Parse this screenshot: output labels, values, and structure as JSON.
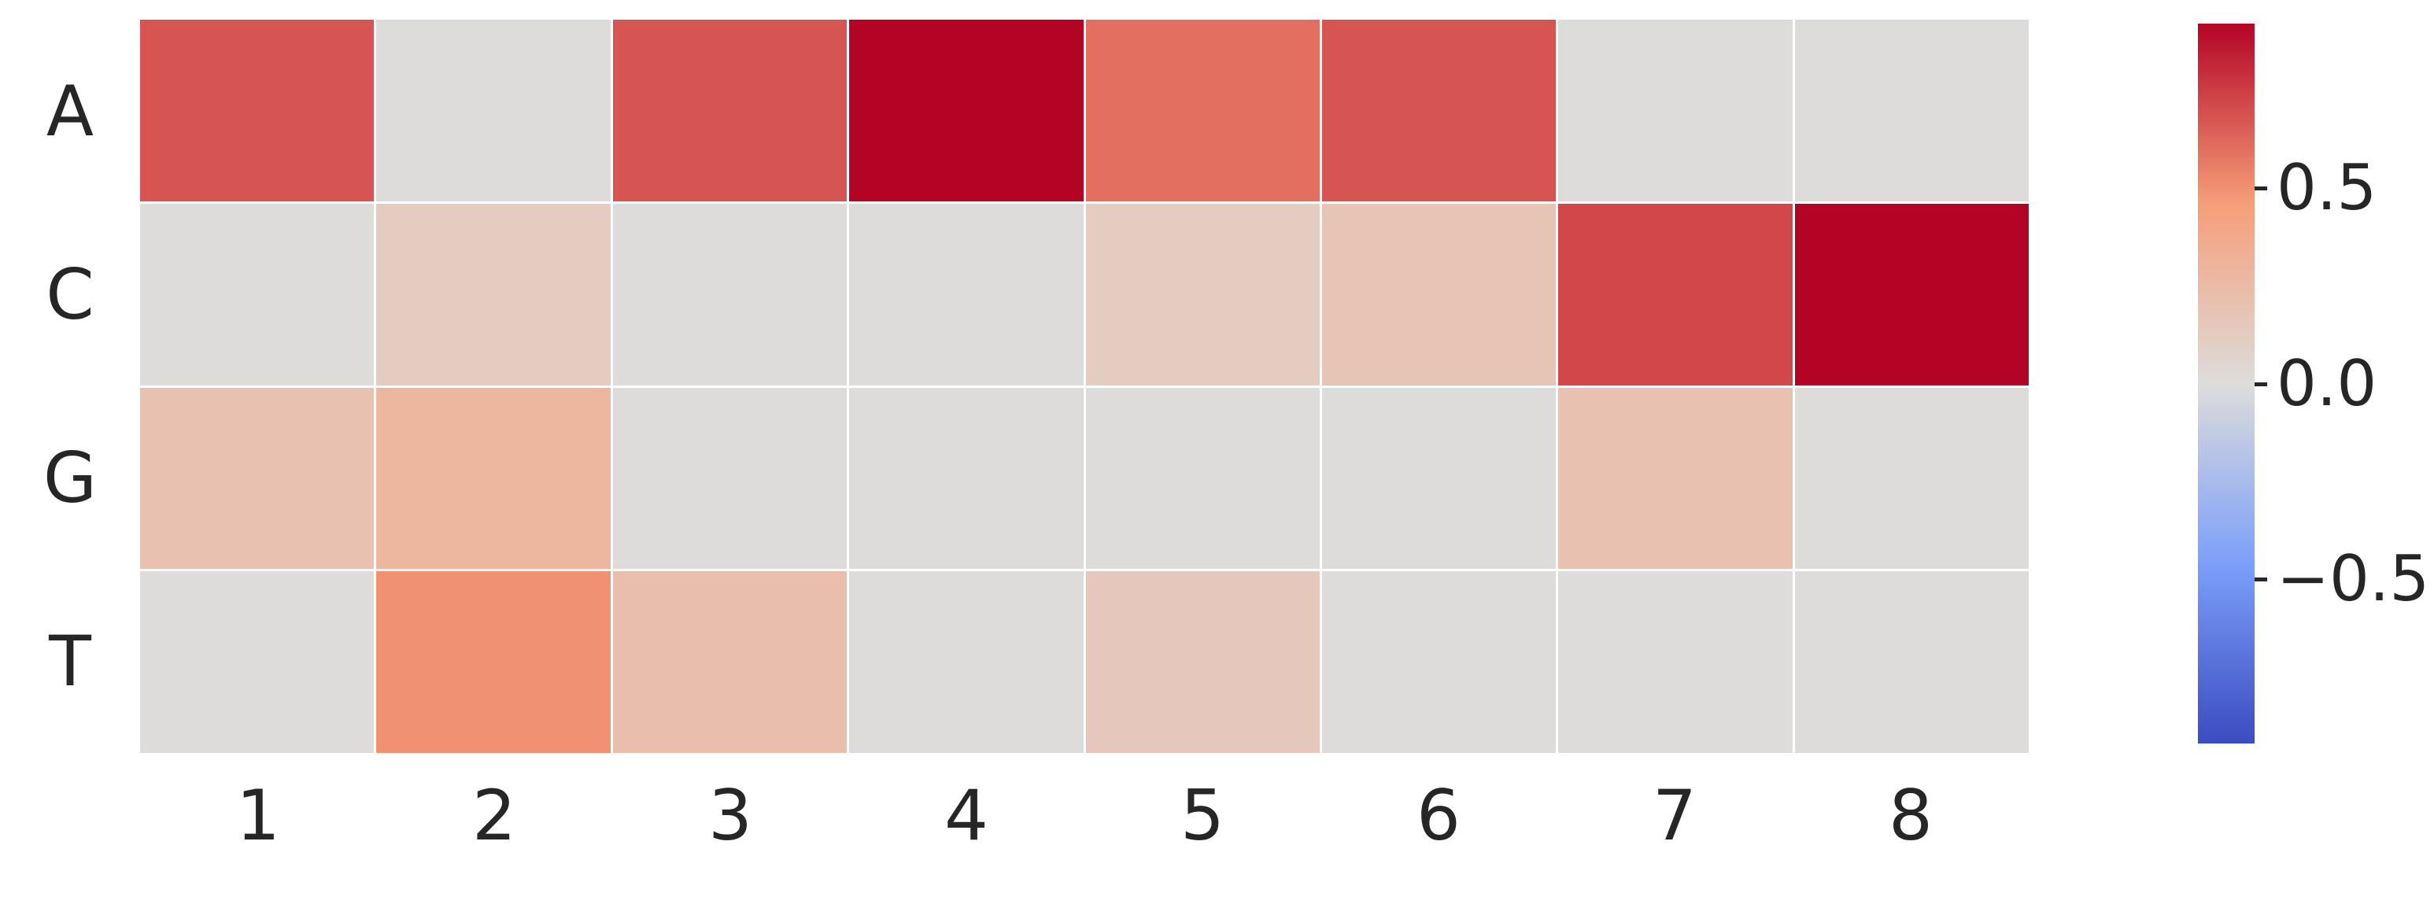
{
  "chart_data": {
    "type": "heatmap",
    "title": "",
    "xlabel": "",
    "ylabel": "",
    "rows": [
      "A",
      "C",
      "G",
      "T"
    ],
    "columns": [
      "1",
      "2",
      "3",
      "4",
      "5",
      "6",
      "7",
      "8"
    ],
    "values": [
      [
        0.68,
        0.0,
        0.68,
        0.93,
        0.6,
        0.68,
        0.0,
        0.0
      ],
      [
        0.0,
        0.12,
        0.0,
        0.0,
        0.12,
        0.18,
        0.72,
        0.93
      ],
      [
        0.2,
        0.28,
        0.0,
        0.0,
        0.0,
        0.0,
        0.2,
        0.0
      ],
      [
        0.0,
        0.5,
        0.22,
        0.0,
        0.15,
        0.0,
        0.0,
        0.0
      ]
    ],
    "colormap": "coolwarm",
    "vmin": -0.92,
    "vmax": 0.92,
    "colorbar": {
      "position": "right",
      "tick_labels": [
        "0.5",
        "0.0",
        "−0.5"
      ],
      "tick_values": [
        0.5,
        0.0,
        -0.5
      ]
    },
    "grid": false,
    "legend_position": "none"
  },
  "colors": {
    "background": "#ffffff",
    "text": "#262626",
    "cell_gap": "#ffffff",
    "cmap_anchors": [
      "#3b4cc0",
      "#7c9ff9",
      "#dddcdb",
      "#f69e79",
      "#b40426"
    ]
  }
}
